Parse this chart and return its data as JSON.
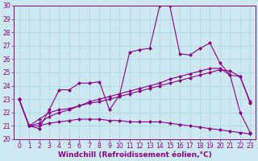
{
  "xlabel": "Windchill (Refroidissement éolien,°C)",
  "bg_color": "#cde8f0",
  "line_color": "#880088",
  "x": [
    0,
    1,
    2,
    3,
    4,
    5,
    6,
    7,
    8,
    9,
    10,
    11,
    12,
    13,
    14,
    15,
    16,
    17,
    18,
    19,
    20,
    21,
    22,
    23
  ],
  "series1": [
    23,
    21,
    20.8,
    22.2,
    23.7,
    23.7,
    24.2,
    24.2,
    24.3,
    22.2,
    23.3,
    26.5,
    26.7,
    26.8,
    30.0,
    30.0,
    26.4,
    26.3,
    26.8,
    27.2,
    25.7,
    24.8,
    24.7,
    22.8
  ],
  "series2": [
    23.0,
    21.0,
    21.5,
    22.0,
    22.2,
    22.3,
    22.5,
    22.7,
    22.8,
    23.0,
    23.2,
    23.4,
    23.6,
    23.8,
    24.0,
    24.2,
    24.4,
    24.6,
    24.8,
    25.0,
    25.2,
    25.1,
    24.7,
    22.7
  ],
  "series3": [
    23.0,
    21.0,
    21.2,
    21.7,
    22.0,
    22.2,
    22.5,
    22.8,
    23.0,
    23.2,
    23.4,
    23.6,
    23.8,
    24.0,
    24.2,
    24.5,
    24.7,
    24.9,
    25.1,
    25.3,
    25.3,
    24.8,
    22.0,
    20.5
  ],
  "series4": [
    23.0,
    21.0,
    21.0,
    21.2,
    21.3,
    21.4,
    21.5,
    21.5,
    21.5,
    21.4,
    21.4,
    21.3,
    21.3,
    21.3,
    21.3,
    21.2,
    21.1,
    21.0,
    20.9,
    20.8,
    20.7,
    20.6,
    20.5,
    20.4
  ],
  "ylim": [
    20,
    30
  ],
  "xlim": [
    -0.5,
    23.5
  ],
  "yticks": [
    20,
    21,
    22,
    23,
    24,
    25,
    26,
    27,
    28,
    29,
    30
  ],
  "xticks": [
    0,
    1,
    2,
    3,
    4,
    5,
    6,
    7,
    8,
    9,
    10,
    11,
    12,
    13,
    14,
    15,
    16,
    17,
    18,
    19,
    20,
    21,
    22,
    23
  ],
  "grid_color": "#aad4e0",
  "markersize": 2.5,
  "linewidth": 0.8,
  "xlabel_fontsize": 6.5,
  "tick_fontsize": 5.5
}
